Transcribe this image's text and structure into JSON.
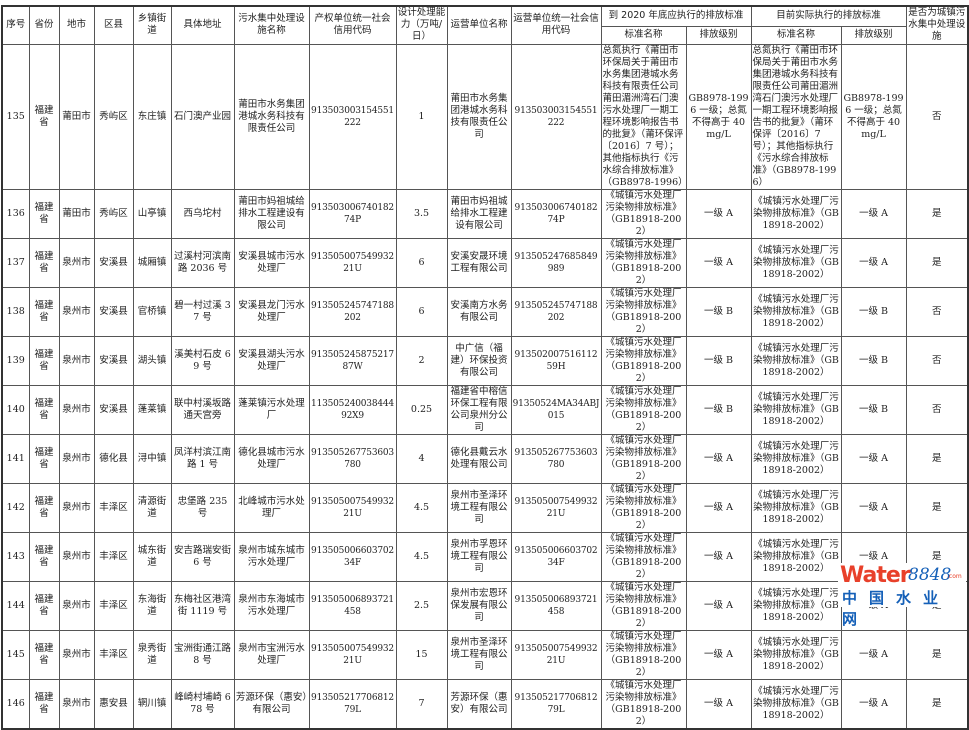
{
  "header": {
    "seq": "序号",
    "province": "省份",
    "city": "地市",
    "county": "区县",
    "town": "乡镇街道",
    "address": "具体地址",
    "facility": "污水集中处理设施名称",
    "owner_code": "产权单位统一社会信用代码",
    "capacity": "设计处理能力（万吨/日）",
    "operator": "运营单位名称",
    "operator_code": "运营单位统一社会信用代码",
    "std2020": "到 2020 年底应执行的排放标准",
    "std_current": "目前实际执行的排放标准",
    "std_name": "标准名称",
    "std_level": "排放级别",
    "is_urban": "是否为城镇污水集中处理设施"
  },
  "rows": [
    [
      "135",
      "福建省",
      "莆田市",
      "秀屿区",
      "东庄镇",
      "石门澳产业园",
      "莆田市水务集团港城水务科技有限责任公司",
      "913503003154551222",
      "1",
      "莆田市水务集团港城水务科技有限责任公司",
      "913503003154551222",
      "总氮执行《莆田市环保局关于莆田市水务集团港城水务科技有限责任公司莆田湄洲湾石门澳污水处理厂一期工程环境影响报告书的批复》（莆环保评〔2016〕7 号）；其他指标执行《污水综合排放标准》（GB8978-1996）",
      "GB8978-1996 一级；总氮不得高于 40mg/L",
      "总氮执行《莆田市环保局关于莆田市水务集团港城水务科技有限责任公司莆田湄洲湾石门澳污水处理厂一期工程环境影响报告书的批复》（莆环保评〔2016〕7 号）；其他指标执行《污水综合排放标准》（GB8978-1996）",
      "GB8978-1996 一级；总氮不得高于 40mg/L",
      "否"
    ],
    [
      "136",
      "福建省",
      "莆田市",
      "秀屿区",
      "山亭镇",
      "西乌坨村",
      "莆田市妈祖城给排水工程建设有限公司",
      "91350300674018274P",
      "3.5",
      "莆田市妈祖城给排水工程建设有限公司",
      "91350300674018274P",
      "《城镇污水处理厂污染物排放标准》（GB18918-2002）",
      "一级 A",
      "《城镇污水处理厂污染物排放标准》（GB18918-2002）",
      "一级 A",
      "是"
    ],
    [
      "137",
      "福建省",
      "泉州市",
      "安溪县",
      "城厢镇",
      "过溪村河滨南路 2036 号",
      "安溪县城市污水处理厂",
      "91350500754993221U",
      "6",
      "安溪安晟环境工程有限公司",
      "913505247685849989",
      "《城镇污水处理厂污染物排放标准》（GB18918-2002）",
      "一级 A",
      "《城镇污水处理厂污染物排放标准》（GB18918-2002）",
      "一级 A",
      "是"
    ],
    [
      "138",
      "福建省",
      "泉州市",
      "安溪县",
      "官桥镇",
      "碧一村过溪 37 号",
      "安溪县龙门污水处理厂",
      "913505245747188202",
      "6",
      "安溪南方水务有限公司",
      "913505245747188202",
      "《城镇污水处理厂污染物排放标准》（GB18918-2002）",
      "一级 B",
      "《城镇污水处理厂污染物排放标准》（GB18918-2002）",
      "一级 B",
      "否"
    ],
    [
      "139",
      "福建省",
      "泉州市",
      "安溪县",
      "湖头镇",
      "溪美村石皮 69 号",
      "安溪县湖头污水处理厂",
      "91350524587521787W",
      "2",
      "中广信（福建）环保投资有限公司",
      "91350200751611259H",
      "《城镇污水处理厂污染物排放标准》（GB18918-2002）",
      "一级 B",
      "《城镇污水处理厂污染物排放标准》（GB18918-2002）",
      "一级 B",
      "否"
    ],
    [
      "140",
      "福建省",
      "泉州市",
      "安溪县",
      "蓬莱镇",
      "联中村溪坂路通天宫旁",
      "蓬莱镇污水处理厂",
      "11350524003844492X9",
      "0.25",
      "福建省中榕信环保工程有限公司泉州分公司",
      "91350524MA34ABJ015",
      "《城镇污水处理厂污染物排放标准》（GB18918-2002）",
      "一级 B",
      "《城镇污水处理厂污染物排放标准》（GB18918-2002）",
      "一级 B",
      "否"
    ],
    [
      "141",
      "福建省",
      "泉州市",
      "德化县",
      "浔中镇",
      "凤洋村滨江南路 1 号",
      "德化县城市污水处理厂",
      "913505267753603780",
      "4",
      "德化县戴云水处理有限公司",
      "913505267753603780",
      "《城镇污水处理厂污染物排放标准》（GB18918-2002）",
      "一级 A",
      "《城镇污水处理厂污染物排放标准》（GB18918-2002）",
      "一级 A",
      "是"
    ],
    [
      "142",
      "福建省",
      "泉州市",
      "丰泽区",
      "清源街道",
      "忠堡路 235 号",
      "北峰城市污水处理厂",
      "91350500754993221U",
      "4.5",
      "泉州市圣泽环境工程有限公司",
      "91350500754993221U",
      "《城镇污水处理厂污染物排放标准》（GB18918-2002）",
      "一级 A",
      "《城镇污水处理厂污染物排放标准》（GB18918-2002）",
      "一级 A",
      "是"
    ],
    [
      "143",
      "福建省",
      "泉州市",
      "丰泽区",
      "城东街道",
      "安吉路瑞安街 6 号",
      "泉州市城东城市污水处理厂",
      "91350500660370234F",
      "4.5",
      "泉州市孚恩环境工程有限公司",
      "91350500660370234F",
      "《城镇污水处理厂污染物排放标准》（GB18918-2002）",
      "一级 A",
      "《城镇污水处理厂污染物排放标准》（GB18918-2002）",
      "一级 A",
      "是"
    ],
    [
      "144",
      "福建省",
      "泉州市",
      "丰泽区",
      "东海街道",
      "东梅社区港湾街 1119 号",
      "泉州市东海城市污水处理厂",
      "913505006893721458",
      "2.5",
      "泉州市宏恩环保发展有限公司",
      "913505006893721458",
      "《城镇污水处理厂污染物排放标准》（GB18918-2002）",
      "一级 A",
      "《城镇污水处理厂污染物排放标准》（GB18918-2002）",
      "一级 A",
      "是"
    ],
    [
      "145",
      "福建省",
      "泉州市",
      "丰泽区",
      "泉秀街道",
      "宝洲街通江路 8 号",
      "泉州市宝洲污水处理厂",
      "91350500754993221U",
      "15",
      "泉州市圣泽环境工程有限公司",
      "91350500754993221U",
      "《城镇污水处理厂污染物排放标准》（GB18918-2002）",
      "一级 A",
      "《城镇污水处理厂污染物排放标准》（GB18918-2002）",
      "一级 A",
      "是"
    ],
    [
      "146",
      "福建省",
      "泉州市",
      "惠安县",
      "辋川镇",
      "峰崎村埔崎 678 号",
      "芳源环保（惠安）有限公司",
      "91350521770681279L",
      "7",
      "芳源环保（惠安）有限公司",
      "91350521770681279L",
      "《城镇污水处理厂污染物排放标准》（GB18918-2002）",
      "一级 A",
      "《城镇污水处理厂污染物排放标准》（GB18918-2002）",
      "一级 A",
      "是"
    ]
  ],
  "watermark": {
    "brand": "Water",
    "number": "8848",
    "suffix": ".com",
    "chinese": "中国水业网"
  }
}
